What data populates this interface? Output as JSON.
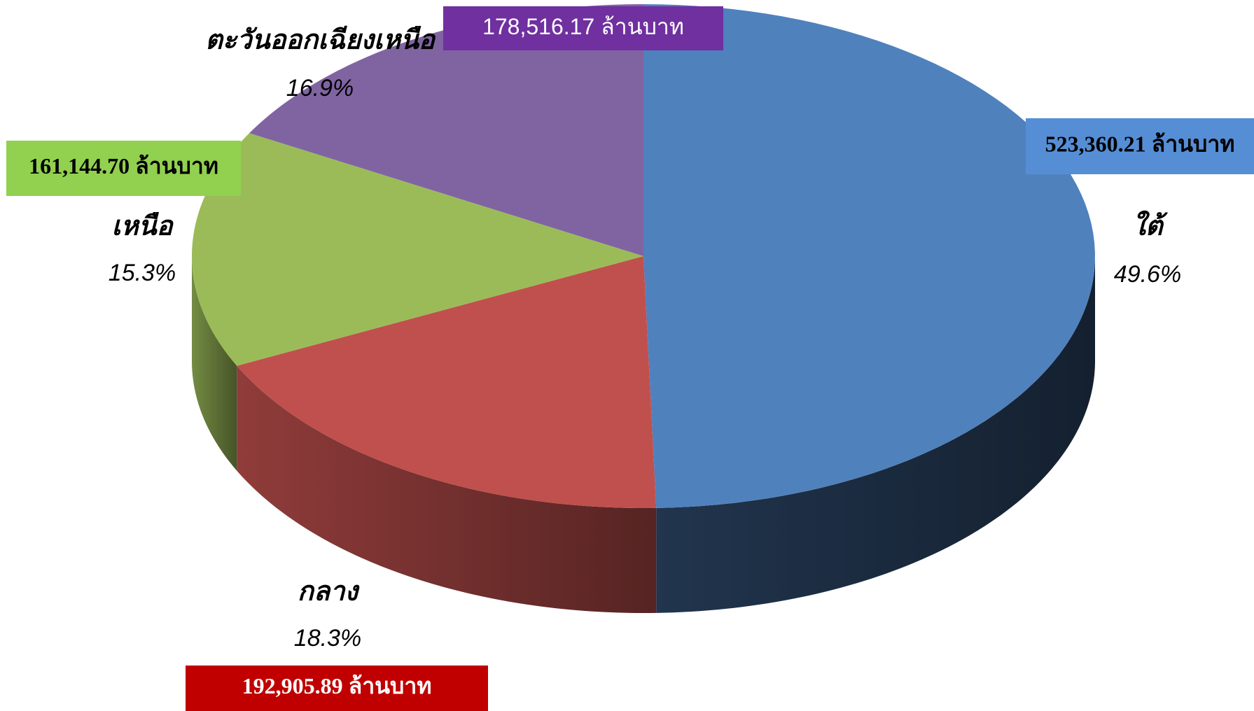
{
  "chart_data": {
    "type": "pie3d",
    "categories": [
      "ใต้",
      "กลาง",
      "เหนือ",
      "ตะวันออกเฉียงเหนือ"
    ],
    "values": [
      49.6,
      18.3,
      15.3,
      16.9
    ],
    "value_labels": [
      "49.6%",
      "18.3%",
      "15.3%",
      "16.9%"
    ],
    "amounts": [
      523360.21,
      192905.89,
      161144.7,
      178516.17
    ],
    "amount_labels": [
      "523,360.21 ล้านบาท",
      "192,905.89  ล้านบาท",
      "161,144.70 ล้านบาท",
      "178,516.17  ล้านบาท"
    ],
    "colors": [
      "#4f81bd",
      "#c0504d",
      "#9bbb59",
      "#8064a2"
    ],
    "label_box_colors": [
      "#558ed5",
      "#c00000",
      "#92d050",
      "#7030a0"
    ],
    "label_text_colors": [
      "#000000",
      "#ffffff",
      "#000000",
      "#ffffff"
    ]
  }
}
